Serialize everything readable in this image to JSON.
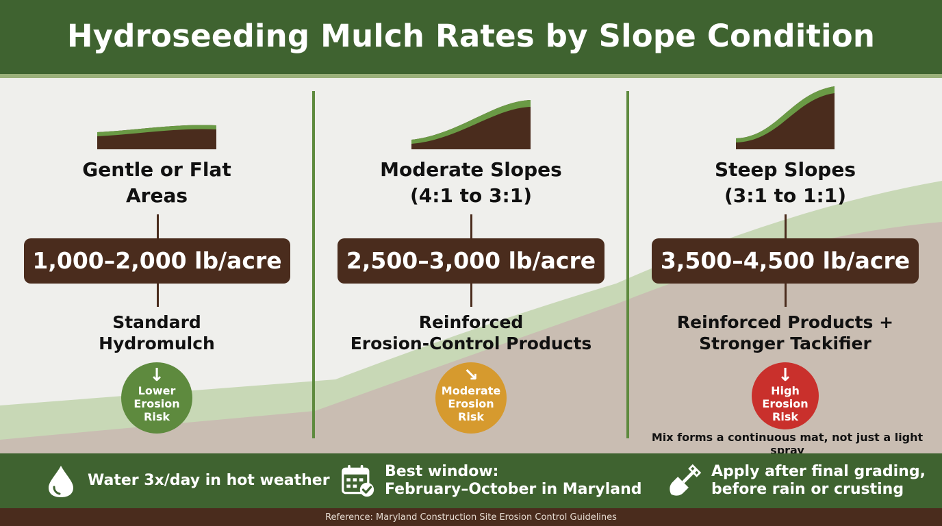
{
  "title": "Hydroseeding Mulch Rates by Slope Condition",
  "colors": {
    "header_green": "#3f6330",
    "soil_brown": "#4a2c1d",
    "grass_green": "#6a9a45",
    "low_risk": "#5e8a3e",
    "moderate_risk": "#d69a2e",
    "high_risk": "#c9302c"
  },
  "columns": [
    {
      "slope_icon": "gentle-slope-icon",
      "title_line1": "Gentle or Flat",
      "title_line2": "Areas",
      "rate": "1,000–2,000 lb/acre",
      "product_line1": "Standard",
      "product_line2": "Hydromulch",
      "risk_icon": "arrow-down-icon",
      "risk_line1": "Lower",
      "risk_line2": "Erosion",
      "risk_line3": "Risk"
    },
    {
      "slope_icon": "moderate-slope-icon",
      "title_line1": "Moderate Slopes",
      "title_line2": "(4:1 to 3:1)",
      "rate": "2,500–3,000 lb/acre",
      "product_line1": "Reinforced",
      "product_line2": "Erosion-Control Products",
      "risk_icon": "arrow-down-right-icon",
      "risk_line1": "Moderate",
      "risk_line2": "Erosion",
      "risk_line3": "Risk"
    },
    {
      "slope_icon": "steep-slope-icon",
      "title_line1": "Steep Slopes",
      "title_line2": "(3:1 to 1:1)",
      "rate": "3,500–4,500 lb/acre",
      "product_line1": "Reinforced Products +",
      "product_line2": "Stronger Tackifier",
      "risk_icon": "arrow-down-icon",
      "risk_line1": "High",
      "risk_line2": "Erosion",
      "risk_line3": "Risk"
    }
  ],
  "note": "Mix forms a continuous mat, not just a light spray",
  "footer": {
    "water": {
      "icon": "water-drop-icon",
      "text": "Water 3x/day in hot weather"
    },
    "window": {
      "icon": "calendar-check-icon",
      "line1": "Best window:",
      "line2": "February–October in Maryland"
    },
    "apply": {
      "icon": "shovel-icon",
      "line1": "Apply after final grading,",
      "line2": "before rain or crusting"
    }
  },
  "reference": "Reference: Maryland Construction Site Erosion Control Guidelines"
}
